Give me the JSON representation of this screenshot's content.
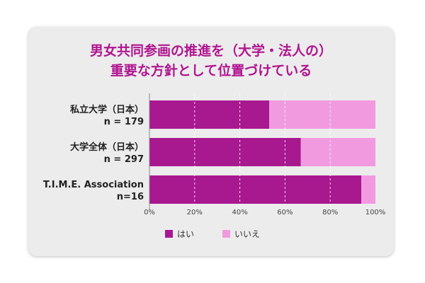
{
  "chart_data": {
    "type": "bar",
    "orientation": "horizontal",
    "stacked": true,
    "title_lines": [
      "男女共同参画の推進を（大学・法人の）",
      "重要な方針として位置づけている"
    ],
    "categories": [
      [
        "私立大学（日本）",
        "n = 179"
      ],
      [
        "大学全体（日本）",
        "n = 297"
      ],
      [
        "T.I.M.E. Association",
        "n=16"
      ]
    ],
    "series": [
      {
        "name": "はい",
        "values": [
          53,
          67,
          93.75
        ],
        "color": "#a8188f"
      },
      {
        "name": "いいえ",
        "values": [
          47,
          33,
          6.25
        ],
        "color": "#f29ae0"
      }
    ],
    "xlim": [
      0,
      100
    ],
    "xticks": [
      "0%",
      "20%",
      "40%",
      "60%",
      "80%",
      "100%"
    ],
    "grid": true,
    "legend_position": "bottom"
  }
}
